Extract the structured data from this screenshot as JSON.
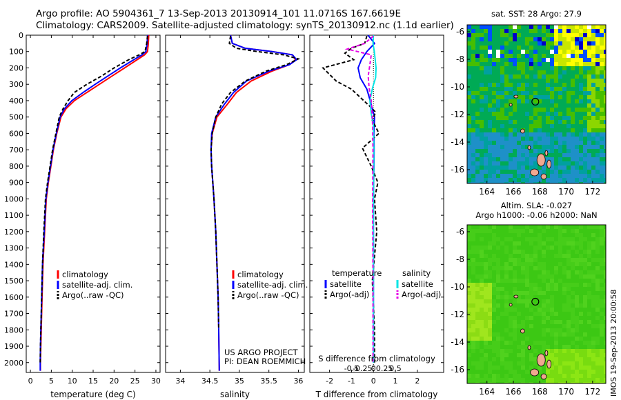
{
  "header": {
    "title_line1": "Argo profile: AO 5904361_7 13-Sep-2013 20130914_101 11.0716S 167.6619E",
    "title_line2": "Climatology: CARS2009. Satellite-adjusted climatology: synTS_20130912.nc (1.1d earlier)"
  },
  "colors": {
    "climatology": "#ff0000",
    "satellite_adj_clim": "#0000ff",
    "argo": "#000000",
    "satellite_T": "#0000ff",
    "argo_T": "#000000",
    "satellite_S": "#00e5e5",
    "argo_S": "#e600e6",
    "land": "#f0a890"
  },
  "chart_data": [
    {
      "id": "temperature",
      "type": "line",
      "xlabel": "temperature (deg C)",
      "ylabel": "",
      "xlim": [
        -1,
        31
      ],
      "ylim": [
        2060,
        0
      ],
      "xticks": [
        0,
        5,
        10,
        15,
        20,
        25,
        30
      ],
      "xtick_labels": [
        "0",
        "5",
        "10",
        "15",
        "20",
        "25",
        "30"
      ],
      "yticks": [
        0,
        100,
        200,
        300,
        400,
        500,
        600,
        700,
        800,
        900,
        1000,
        1100,
        1200,
        1300,
        1400,
        1500,
        1600,
        1700,
        1800,
        1900,
        2000
      ],
      "ytick_labels": [
        "0",
        "100",
        "200",
        "300",
        "400",
        "500",
        "600",
        "700",
        "800",
        "900",
        "1000",
        "1100",
        "1200",
        "1300",
        "1400",
        "1500",
        "1600",
        "1700",
        "1800",
        "1900",
        "2000"
      ],
      "legend": [
        "climatology",
        "satellite-adj. clim.",
        "Argo(..raw -QC)"
      ],
      "legend_position": "lower-center",
      "series": [
        {
          "name": "climatology",
          "color_key": "climatology",
          "dash": "",
          "x": [
            28.3,
            28.2,
            28.0,
            27.3,
            25.5,
            22.5,
            19.5,
            16.5,
            13.5,
            10.5,
            8.5,
            7.3,
            6.3,
            5.5,
            4.9,
            4.3,
            3.8,
            3.4,
            3.0,
            2.8,
            2.6,
            2.5,
            2.4,
            2.4
          ],
          "y": [
            0,
            50,
            100,
            120,
            150,
            200,
            250,
            300,
            350,
            400,
            450,
            500,
            600,
            700,
            800,
            900,
            1000,
            1200,
            1400,
            1600,
            1800,
            1900,
            2000,
            2050
          ]
        },
        {
          "name": "satellite-adj. clim.",
          "color_key": "satellite_adj_clim",
          "dash": "",
          "x": [
            28.0,
            27.9,
            27.6,
            26.7,
            24.7,
            21.5,
            18.5,
            15.5,
            12.6,
            9.9,
            8.1,
            7.1,
            6.2,
            5.4,
            4.8,
            4.2,
            3.7,
            3.3,
            2.9,
            2.7,
            2.5,
            2.4,
            2.35,
            2.35
          ],
          "y": [
            0,
            50,
            100,
            120,
            150,
            200,
            250,
            300,
            350,
            400,
            450,
            500,
            600,
            700,
            800,
            900,
            1000,
            1200,
            1400,
            1600,
            1800,
            1900,
            2000,
            2050
          ]
        },
        {
          "name": "Argo(..raw -QC)",
          "color_key": "argo",
          "dash": "5,3",
          "x": [
            28.0,
            27.8,
            27.4,
            26.0,
            23.5,
            20.0,
            17.0,
            13.5,
            10.5,
            9.0,
            7.8,
            6.9,
            6.1,
            5.3,
            4.7,
            4.1,
            3.6,
            3.2,
            2.9,
            2.7,
            2.5,
            2.4,
            2.35
          ],
          "y": [
            5,
            50,
            100,
            120,
            150,
            200,
            250,
            300,
            350,
            400,
            450,
            500,
            600,
            700,
            800,
            900,
            1000,
            1200,
            1400,
            1600,
            1800,
            1900,
            2000
          ]
        }
      ]
    },
    {
      "id": "salinity",
      "type": "line",
      "xlabel": "salinity",
      "ylabel": "",
      "xlim": [
        33.75,
        36.1
      ],
      "ylim": [
        2060,
        0
      ],
      "xticks": [
        34,
        34.5,
        35,
        35.5,
        36
      ],
      "xtick_labels": [
        "34",
        "34.5",
        "35",
        "35.5",
        "36"
      ],
      "legend": [
        "climatology",
        "satellite-adj. clim.",
        "Argo(..raw -QC)"
      ],
      "legend_position": "lower-center",
      "annotation": [
        "US ARGO PROJECT",
        "PI: DEAN ROEMMICH"
      ],
      "series": [
        {
          "name": "climatology",
          "color_key": "climatology",
          "dash": "",
          "x": [
            34.85,
            34.88,
            35.1,
            35.55,
            35.9,
            35.95,
            35.85,
            35.55,
            35.2,
            34.95,
            34.8,
            34.62,
            34.54,
            34.52,
            34.53,
            34.55,
            34.57,
            34.6,
            34.62,
            34.64,
            34.65,
            34.66
          ],
          "y": [
            0,
            50,
            80,
            100,
            120,
            150,
            180,
            220,
            280,
            350,
            420,
            500,
            600,
            700,
            800,
            900,
            1000,
            1200,
            1400,
            1600,
            1800,
            2050
          ]
        },
        {
          "name": "satellite-adj. clim.",
          "color_key": "satellite_adj_clim",
          "dash": "",
          "x": [
            34.85,
            34.88,
            35.1,
            35.55,
            35.9,
            35.97,
            35.85,
            35.5,
            35.12,
            34.9,
            34.75,
            34.6,
            34.53,
            34.52,
            34.53,
            34.55,
            34.57,
            34.6,
            34.62,
            34.64,
            34.65,
            34.66
          ],
          "y": [
            0,
            50,
            80,
            100,
            120,
            150,
            180,
            220,
            280,
            350,
            420,
            500,
            600,
            700,
            800,
            900,
            1000,
            1200,
            1400,
            1600,
            1800,
            2050
          ]
        },
        {
          "name": "Argo(..raw -QC)",
          "color_key": "argo",
          "dash": "5,3",
          "x": [
            34.85,
            34.83,
            34.95,
            35.3,
            35.75,
            36.0,
            35.8,
            35.45,
            35.1,
            34.85,
            34.7,
            34.6,
            34.54,
            34.52,
            34.53,
            34.55,
            34.57,
            34.6,
            34.62,
            34.64,
            34.65
          ],
          "y": [
            5,
            50,
            80,
            100,
            120,
            145,
            180,
            220,
            280,
            350,
            420,
            500,
            600,
            700,
            800,
            900,
            1000,
            1200,
            1400,
            1600,
            1800
          ]
        }
      ]
    },
    {
      "id": "difference",
      "type": "line",
      "xlabel": "T difference from climatology",
      "xlabel_top": "S difference from climatology",
      "xlim": [
        -2.9,
        3.2
      ],
      "ylim": [
        2060,
        0
      ],
      "xticks": [
        -2,
        -1,
        0,
        1,
        2
      ],
      "xtick_labels": [
        "-2",
        "-1",
        "0",
        "1",
        "2"
      ],
      "s_xticks": [
        -0.5,
        -0.25,
        0,
        0.25,
        0.5
      ],
      "s_xtick_labels": [
        "-0.5",
        "-0.25",
        "0",
        "0.25",
        "0.5"
      ],
      "s_scale": 2,
      "legend_left_title": "temperature",
      "legend_right_title": "salinity",
      "legend_left": [
        "satellite",
        "Argo(-adj)"
      ],
      "legend_right": [
        "satellite",
        "Argo(-adj)"
      ],
      "series": [
        {
          "name": "satellite",
          "quantity": "T",
          "color_key": "satellite_T",
          "dash": "",
          "x": [
            -0.25,
            0.05,
            -0.3,
            -0.55,
            -0.7,
            -0.6,
            -0.3,
            -0.15,
            -0.05,
            0.05,
            0.02,
            0.03,
            0.02,
            0.0,
            0.0,
            0.0
          ],
          "y": [
            0,
            50,
            100,
            150,
            200,
            260,
            330,
            400,
            450,
            500,
            600,
            700,
            800,
            1000,
            1500,
            2000
          ]
        },
        {
          "name": "Argo(-adj)",
          "quantity": "T",
          "color_key": "argo_T",
          "dash": "5,3",
          "x": [
            -0.3,
            -0.4,
            -1.0,
            -1.3,
            -0.9,
            -2.3,
            -1.7,
            -1.0,
            -0.6,
            -0.2,
            0.1,
            -0.05,
            0.25,
            -0.5,
            -0.1,
            0.2,
            0.05,
            0.15,
            -0.05,
            0.05,
            0.05
          ],
          "y": [
            5,
            50,
            80,
            110,
            150,
            200,
            280,
            330,
            380,
            430,
            470,
            520,
            600,
            690,
            800,
            900,
            1000,
            1200,
            1500,
            1800,
            2000
          ]
        },
        {
          "name": "satellite",
          "quantity": "S",
          "color_key": "satellite_S",
          "dash": "",
          "x": [
            0.0,
            -0.01,
            0.02,
            0.04,
            0.06,
            0.05,
            -0.02,
            -0.08,
            -0.05,
            0.0,
            0.01,
            0.0,
            0.0,
            0.0
          ],
          "y": [
            0,
            50,
            100,
            150,
            200,
            260,
            320,
            400,
            480,
            550,
            700,
            1000,
            1500,
            2000
          ]
        },
        {
          "name": "Argo(-adj)",
          "quantity": "S",
          "color_key": "argo_S",
          "dash": "5,3",
          "x": [
            0.0,
            -0.2,
            -0.6,
            -0.05,
            -0.08,
            -0.12,
            -0.1,
            -0.05,
            -0.03,
            -0.02,
            -0.01,
            -0.02,
            -0.01,
            -0.01
          ],
          "y": [
            5,
            50,
            85,
            120,
            180,
            250,
            320,
            400,
            480,
            550,
            700,
            1000,
            1500,
            2000
          ]
        }
      ]
    },
    {
      "id": "sst_map",
      "type": "heatmap",
      "title": "sat. SST: 28 Argo: 27.9",
      "xlim": [
        162.5,
        173.0
      ],
      "ylim": [
        -17.0,
        -5.5
      ],
      "xticks": [
        164,
        166,
        168,
        170,
        172
      ],
      "xtick_labels": [
        "164",
        "166",
        "168",
        "170",
        "172"
      ],
      "yticks": [
        -6,
        -8,
        -10,
        -12,
        -14,
        -16
      ],
      "ytick_labels": [
        "-6",
        "-8",
        "-10",
        "-12",
        "-14",
        "-16"
      ],
      "marker": {
        "lon": 167.6619,
        "lat": -11.0716
      }
    },
    {
      "id": "sla_map",
      "type": "heatmap",
      "title_line1": "Altim. SLA: -0.027",
      "title_line2": "Argo h1000: -0.06 h2000: NaN",
      "xlim": [
        162.5,
        173.0
      ],
      "ylim": [
        -17.0,
        -5.5
      ],
      "xticks": [
        164,
        166,
        168,
        170,
        172
      ],
      "xtick_labels": [
        "164",
        "166",
        "168",
        "170",
        "172"
      ],
      "yticks": [
        -6,
        -8,
        -10,
        -12,
        -14,
        -16
      ],
      "ytick_labels": [
        "-6",
        "-8",
        "-10",
        "-12",
        "-14",
        "-16"
      ],
      "marker": {
        "lon": 167.6619,
        "lat": -11.0716
      }
    }
  ],
  "footer_vertical": "IMOS 19-Sep-2013 20:00:58"
}
